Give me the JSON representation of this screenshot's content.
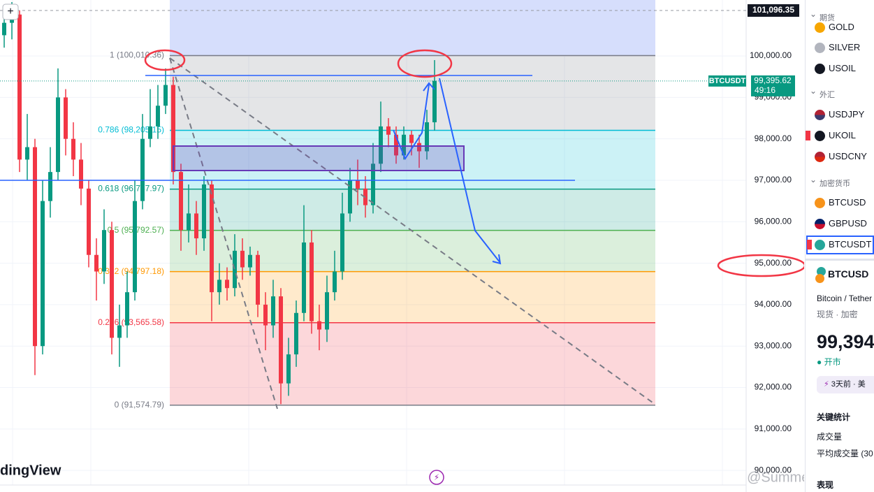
{
  "chart": {
    "type": "candlestick",
    "logo": "dingView",
    "symbol_tag": "BTCUSDT",
    "last_price": {
      "value": 99395.62,
      "label": "99,395.62"
    },
    "countdown": "49:16",
    "crosshair_price": {
      "value": 101096.35,
      "label": "101,096.35"
    },
    "ylim": [
      89480,
      101350
    ],
    "yticks": [
      {
        "value": 100000,
        "label": "100,000.00"
      },
      {
        "value": 99000,
        "label": "99,000.00"
      },
      {
        "value": 98000,
        "label": "98,000.00"
      },
      {
        "value": 97000,
        "label": "97,000.00"
      },
      {
        "value": 96000,
        "label": "96,000.00"
      },
      {
        "value": 95000,
        "label": "95,000.00"
      },
      {
        "value": 94000,
        "label": "94,000.00"
      },
      {
        "value": 93000,
        "label": "93,000.00"
      },
      {
        "value": 92000,
        "label": "92,000.00"
      },
      {
        "value": 91000,
        "label": "91,000.00"
      },
      {
        "value": 90000,
        "label": "90,000.00"
      }
    ],
    "up_color": "#089981",
    "down_color": "#f23645",
    "fib_levels": [
      {
        "value": 100010.36,
        "label": "1 (100,010.36)",
        "color": "#787b86"
      },
      {
        "value": 98205.15,
        "label": "0.786 (98,205.15)",
        "color": "#00bcd4"
      },
      {
        "value": 96787.97,
        "label": "0.618 (96,787.97)",
        "color": "#089981"
      },
      {
        "value": 95792.57,
        "label": "0.5 (95,792.57)",
        "color": "#4caf50"
      },
      {
        "value": 94797.18,
        "label": "0.382 (94,797.18)",
        "color": "#ff9800"
      },
      {
        "value": 93565.58,
        "label": "0.236 (93,565.58)",
        "color": "#f23645"
      },
      {
        "value": 91574.79,
        "label": "0 (91,574.79)",
        "color": "#787b86"
      }
    ],
    "candles": [
      [
        100500,
        101200,
        100200,
        100800
      ],
      [
        100800,
        101300,
        100400,
        101000
      ],
      [
        101000,
        101100,
        97200,
        97500
      ],
      [
        97500,
        98600,
        97000,
        97800
      ],
      [
        97800,
        98000,
        92300,
        93000
      ],
      [
        93000,
        97000,
        92800,
        96500
      ],
      [
        96500,
        97800,
        96100,
        97200
      ],
      [
        97200,
        99700,
        97000,
        99000
      ],
      [
        99000,
        99200,
        97600,
        98000
      ],
      [
        98000,
        98400,
        97100,
        97500
      ],
      [
        97500,
        97900,
        96400,
        96800
      ],
      [
        96800,
        97000,
        94900,
        95200
      ],
      [
        95200,
        95600,
        94100,
        94800
      ],
      [
        94800,
        96300,
        94500,
        95800
      ],
      [
        95800,
        96000,
        92800,
        93200
      ],
      [
        93200,
        94000,
        92500,
        93500
      ],
      [
        93500,
        94800,
        93200,
        94300
      ],
      [
        94300,
        97000,
        94100,
        96500
      ],
      [
        96500,
        98600,
        96300,
        98000
      ],
      [
        98000,
        99200,
        97800,
        98300
      ],
      [
        98300,
        99300,
        98000,
        98800
      ],
      [
        98800,
        99700,
        98600,
        99300
      ],
      [
        99300,
        99500,
        96900,
        97200
      ],
      [
        97200,
        97400,
        95300,
        95800
      ],
      [
        95800,
        96900,
        95500,
        96200
      ],
      [
        96200,
        96500,
        95200,
        95600
      ],
      [
        95600,
        97100,
        95300,
        96900
      ],
      [
        96900,
        97000,
        93600,
        94300
      ],
      [
        94300,
        95000,
        94000,
        94600
      ],
      [
        94600,
        94900,
        94100,
        94400
      ],
      [
        94400,
        95700,
        94200,
        95300
      ],
      [
        95300,
        95600,
        94600,
        94900
      ],
      [
        94900,
        95400,
        94700,
        95200
      ],
      [
        95200,
        95300,
        93700,
        94000
      ],
      [
        94000,
        94300,
        92900,
        93500
      ],
      [
        93500,
        94600,
        93200,
        94200
      ],
      [
        94200,
        94400,
        91600,
        92100
      ],
      [
        92100,
        93200,
        91800,
        92800
      ],
      [
        92800,
        94100,
        92500,
        93800
      ],
      [
        93800,
        96400,
        93600,
        95500
      ],
      [
        95500,
        95800,
        93300,
        93600
      ],
      [
        93600,
        94000,
        92900,
        93400
      ],
      [
        93400,
        94700,
        93100,
        94300
      ],
      [
        94300,
        95300,
        94100,
        94800
      ],
      [
        94800,
        96700,
        94600,
        96200
      ],
      [
        96200,
        97300,
        96000,
        97000
      ],
      [
        97000,
        97500,
        96400,
        96800
      ],
      [
        96800,
        97100,
        96100,
        96400
      ],
      [
        96400,
        97900,
        96200,
        97400
      ],
      [
        97400,
        98900,
        97200,
        98300
      ],
      [
        98300,
        98500,
        97800,
        98100
      ],
      [
        98100,
        98300,
        97400,
        97600
      ],
      [
        97600,
        98300,
        97500,
        98100
      ],
      [
        98100,
        98200,
        97600,
        97900
      ],
      [
        97900,
        98100,
        97300,
        97700
      ],
      [
        97700,
        98700,
        97500,
        98400
      ],
      [
        98400,
        99900,
        98200,
        99400
      ]
    ]
  },
  "sidebar": {
    "groups": [
      {
        "title": "期货",
        "items": [
          "GOLD",
          "SILVER",
          "USOIL"
        ]
      },
      {
        "title": "外汇",
        "items": [
          "USDJPY",
          "UKOIL",
          "USDCNY"
        ]
      },
      {
        "title": "加密货币",
        "items": [
          "BTCUSD",
          "GBPUSD",
          "BTCUSDT"
        ]
      }
    ],
    "detail": {
      "symbol": "BTCUSD",
      "name": "Bitcoin / Tether",
      "meta": "现货 · 加密",
      "price": "99,394",
      "status": "开市",
      "news": "3天前 · 美",
      "stats_title": "关键统计",
      "volume": "成交量",
      "avg_volume": "平均成交量 (30",
      "performance": "表现"
    }
  },
  "watermark": "@Summer交易日记"
}
